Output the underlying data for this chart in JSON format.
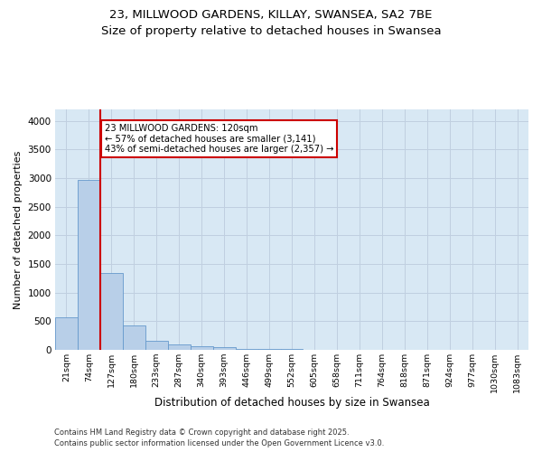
{
  "title_line1": "23, MILLWOOD GARDENS, KILLAY, SWANSEA, SA2 7BE",
  "title_line2": "Size of property relative to detached houses in Swansea",
  "xlabel": "Distribution of detached houses by size in Swansea",
  "ylabel": "Number of detached properties",
  "categories": [
    "21sqm",
    "74sqm",
    "127sqm",
    "180sqm",
    "233sqm",
    "287sqm",
    "340sqm",
    "393sqm",
    "446sqm",
    "499sqm",
    "552sqm",
    "605sqm",
    "658sqm",
    "711sqm",
    "764sqm",
    "818sqm",
    "871sqm",
    "924sqm",
    "977sqm",
    "1030sqm",
    "1083sqm"
  ],
  "values": [
    560,
    2960,
    1340,
    420,
    160,
    90,
    55,
    40,
    20,
    10,
    5,
    2,
    0,
    0,
    0,
    0,
    0,
    0,
    0,
    0,
    0
  ],
  "bar_color": "#b8cfe8",
  "bar_edge_color": "#6699cc",
  "grid_color": "#c0cfe0",
  "background_color": "#d8e8f4",
  "annotation_line1": "23 MILLWOOD GARDENS: 120sqm",
  "annotation_line2": "← 57% of detached houses are smaller (3,141)",
  "annotation_line3": "43% of semi-detached houses are larger (2,357) →",
  "annotation_box_color": "#ffffff",
  "annotation_box_edge": "#cc0000",
  "vline_color": "#cc0000",
  "ylim": [
    0,
    4200
  ],
  "yticks": [
    0,
    500,
    1000,
    1500,
    2000,
    2500,
    3000,
    3500,
    4000
  ],
  "footer_line1": "Contains HM Land Registry data © Crown copyright and database right 2025.",
  "footer_line2": "Contains public sector information licensed under the Open Government Licence v3.0."
}
